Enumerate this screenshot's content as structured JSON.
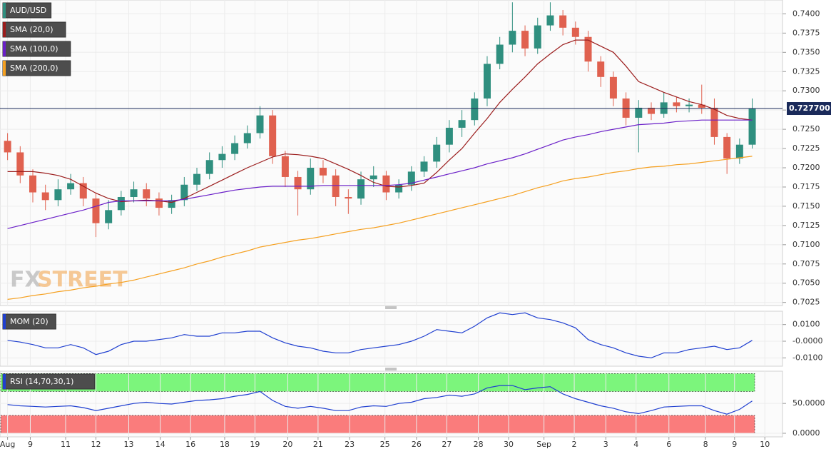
{
  "chart_data": [
    {
      "type": "candlestick",
      "watermark": [
        "FX",
        "STREET"
      ],
      "xlim": [
        -0.6,
        61.4
      ],
      "ylim": [
        0.7021,
        0.7418
      ],
      "yticks": [
        0.7025,
        {
          "value": 0.705,
          "label": "0.7050"
        },
        0.7075,
        {
          "value": 0.71,
          "label": "0.7100"
        },
        0.7125,
        {
          "value": 0.715,
          "label": "0.7150"
        },
        0.7175,
        {
          "value": 0.72,
          "label": "0.7200"
        },
        0.7225,
        {
          "value": 0.725,
          "label": "0.7250"
        },
        0.7275,
        {
          "value": 0.73,
          "label": "0.7300"
        },
        0.7325,
        {
          "value": 0.735,
          "label": "0.7350"
        },
        0.7375,
        {
          "value": 0.74,
          "label": "0.7400"
        }
      ],
      "grid": true,
      "last_price": {
        "value": 0.7277,
        "label": "0.727700",
        "color": "#1a2a5a"
      },
      "series": [
        {
          "name": "AUD/USD",
          "type": "candlestick",
          "color": "#2f8f7f",
          "color_down": "#e0614f",
          "open": [
            0.7235,
            0.722,
            0.719,
            0.7168,
            0.7158,
            0.7172,
            0.718,
            0.716,
            0.7128,
            0.7145,
            0.7162,
            0.7172,
            0.716,
            0.7148,
            0.7158,
            0.7178,
            0.7192,
            0.721,
            0.7218,
            0.7232,
            0.7245,
            0.7268,
            0.7215,
            0.7188,
            0.7172,
            0.72,
            0.719,
            0.7162,
            0.716,
            0.7185,
            0.719,
            0.7168,
            0.7178,
            0.7195,
            0.7208,
            0.723,
            0.7252,
            0.7262,
            0.729,
            0.7335,
            0.736,
            0.7378,
            0.7355,
            0.7385,
            0.7398,
            0.7382,
            0.737,
            0.7338,
            0.7318,
            0.729,
            0.7265,
            0.7278,
            0.727,
            0.7285,
            0.728,
            0.7282,
            0.7278,
            0.724,
            0.7212,
            0.723
          ],
          "high": [
            0.7245,
            0.7228,
            0.7198,
            0.7178,
            0.7185,
            0.7192,
            0.7188,
            0.7168,
            0.7158,
            0.717,
            0.7182,
            0.718,
            0.7168,
            0.7165,
            0.7188,
            0.72,
            0.722,
            0.7228,
            0.7242,
            0.7255,
            0.728,
            0.7275,
            0.7222,
            0.7196,
            0.7212,
            0.721,
            0.7198,
            0.7172,
            0.7195,
            0.7202,
            0.7196,
            0.7185,
            0.7202,
            0.7215,
            0.724,
            0.7262,
            0.7275,
            0.7298,
            0.7345,
            0.737,
            0.7415,
            0.7385,
            0.7395,
            0.7415,
            0.7405,
            0.739,
            0.7378,
            0.7345,
            0.7325,
            0.7298,
            0.7288,
            0.7285,
            0.7298,
            0.7292,
            0.729,
            0.7308,
            0.729,
            0.7245,
            0.7238,
            0.729
          ],
          "low": [
            0.721,
            0.718,
            0.7155,
            0.7145,
            0.715,
            0.7165,
            0.715,
            0.711,
            0.712,
            0.7138,
            0.7155,
            0.715,
            0.7138,
            0.714,
            0.715,
            0.717,
            0.7185,
            0.72,
            0.721,
            0.7225,
            0.7238,
            0.7205,
            0.7175,
            0.7138,
            0.7165,
            0.718,
            0.715,
            0.714,
            0.7152,
            0.7175,
            0.7158,
            0.716,
            0.717,
            0.7188,
            0.72,
            0.722,
            0.724,
            0.7255,
            0.728,
            0.7328,
            0.735,
            0.7345,
            0.7348,
            0.7378,
            0.7372,
            0.736,
            0.7325,
            0.7305,
            0.728,
            0.7255,
            0.722,
            0.7262,
            0.7265,
            0.7272,
            0.7272,
            0.727,
            0.723,
            0.7192,
            0.7205,
            0.7225
          ],
          "close": [
            0.722,
            0.719,
            0.7168,
            0.7158,
            0.7172,
            0.718,
            0.716,
            0.7128,
            0.7145,
            0.7162,
            0.7172,
            0.716,
            0.7148,
            0.7158,
            0.7178,
            0.7192,
            0.721,
            0.7218,
            0.7232,
            0.7245,
            0.7268,
            0.7215,
            0.7188,
            0.7172,
            0.72,
            0.719,
            0.7162,
            0.716,
            0.7185,
            0.719,
            0.7168,
            0.7178,
            0.7195,
            0.7208,
            0.723,
            0.7252,
            0.7262,
            0.729,
            0.7335,
            0.736,
            0.7378,
            0.7355,
            0.7385,
            0.7398,
            0.7382,
            0.737,
            0.7338,
            0.7318,
            0.729,
            0.7265,
            0.7278,
            0.727,
            0.7285,
            0.728,
            0.7282,
            0.7278,
            0.724,
            0.7212,
            0.723,
            0.7277
          ]
        },
        {
          "name": "SMA (20,0)",
          "type": "line",
          "color": "#9b1c1c",
          "values": [
            0.7195,
            0.7195,
            0.7195,
            0.7193,
            0.719,
            0.7185,
            0.7176,
            0.7167,
            0.716,
            0.7156,
            0.7157,
            0.7158,
            0.7157,
            0.7155,
            0.716,
            0.7168,
            0.7176,
            0.7184,
            0.7192,
            0.72,
            0.7207,
            0.7214,
            0.7218,
            0.7217,
            0.7215,
            0.7212,
            0.7205,
            0.7198,
            0.719,
            0.7181,
            0.7176,
            0.7175,
            0.7177,
            0.718,
            0.7194,
            0.721,
            0.7225,
            0.7245,
            0.7264,
            0.7285,
            0.7302,
            0.7318,
            0.7335,
            0.7348,
            0.736,
            0.7366,
            0.7366,
            0.7358,
            0.735,
            0.7332,
            0.7312,
            0.7305,
            0.7298,
            0.7292,
            0.7286,
            0.7282,
            0.7276,
            0.7268,
            0.7264,
            0.7262
          ]
        },
        {
          "name": "SMA (100,0)",
          "type": "line",
          "color": "#6a1fc8",
          "values": [
            0.7121,
            0.7125,
            0.7129,
            0.7133,
            0.7137,
            0.7141,
            0.7145,
            0.715,
            0.7155,
            0.7157,
            0.7157,
            0.7157,
            0.7157,
            0.7157,
            0.7159,
            0.7162,
            0.7165,
            0.7168,
            0.7171,
            0.7173,
            0.7175,
            0.7176,
            0.7176,
            0.7176,
            0.7176,
            0.7177,
            0.7177,
            0.7177,
            0.7177,
            0.7177,
            0.7177,
            0.7178,
            0.718,
            0.7184,
            0.7188,
            0.7192,
            0.7196,
            0.72,
            0.7205,
            0.7209,
            0.7213,
            0.7218,
            0.7224,
            0.723,
            0.7236,
            0.724,
            0.7243,
            0.7247,
            0.725,
            0.7253,
            0.7256,
            0.7257,
            0.7258,
            0.726,
            0.7261,
            0.7262,
            0.7262,
            0.7262,
            0.7262,
            0.7262
          ]
        },
        {
          "name": "SMA (200,0)",
          "type": "line",
          "color": "#f5a020",
          "values": [
            0.7029,
            0.7031,
            0.7034,
            0.7036,
            0.7039,
            0.7041,
            0.7044,
            0.7046,
            0.7049,
            0.7051,
            0.7054,
            0.7058,
            0.7062,
            0.7066,
            0.707,
            0.7075,
            0.7079,
            0.7084,
            0.7088,
            0.7092,
            0.7097,
            0.71,
            0.7103,
            0.7106,
            0.7108,
            0.7111,
            0.7114,
            0.7117,
            0.712,
            0.7122,
            0.7125,
            0.7128,
            0.7132,
            0.7136,
            0.714,
            0.7144,
            0.7148,
            0.7152,
            0.7156,
            0.716,
            0.7164,
            0.7169,
            0.7174,
            0.7178,
            0.7183,
            0.7186,
            0.7188,
            0.7191,
            0.7194,
            0.7196,
            0.7199,
            0.7201,
            0.7202,
            0.7204,
            0.7205,
            0.7207,
            0.7209,
            0.7211,
            0.7213,
            0.7215
          ]
        }
      ]
    },
    {
      "type": "line",
      "xlim": [
        -0.6,
        61.4
      ],
      "ylim": [
        -0.015,
        0.018
      ],
      "yticks": [
        {
          "value": 0.01,
          "label": "0.0100"
        },
        {
          "value": 0,
          "label": "-0.0000"
        },
        {
          "value": -0.01,
          "label": "-0.0100"
        }
      ],
      "grid": true,
      "series": [
        {
          "name": "MOM (20)",
          "type": "line",
          "color": "#1f3fd0",
          "values": [
            0.0005,
            -0.0005,
            -0.002,
            -0.004,
            -0.004,
            -0.002,
            -0.004,
            -0.008,
            -0.006,
            -0.002,
            0,
            0,
            0.001,
            0.002,
            0.004,
            0.003,
            0.003,
            0.005,
            0.005,
            0.006,
            0.006,
            0.002,
            -0.001,
            -0.003,
            -0.004,
            -0.006,
            -0.007,
            -0.007,
            -0.005,
            -0.004,
            -0.003,
            -0.002,
            0,
            0.003,
            0.007,
            0.006,
            0.005,
            0.009,
            0.014,
            0.017,
            0.016,
            0.017,
            0.014,
            0.013,
            0.011,
            0.008,
            0.001,
            -0.002,
            -0.004,
            -0.007,
            -0.009,
            -0.01,
            -0.007,
            -0.007,
            -0.005,
            -0.004,
            -0.003,
            -0.005,
            -0.004,
            0.0005
          ]
        }
      ]
    },
    {
      "type": "line",
      "xlim": [
        -0.6,
        61.4
      ],
      "ylim": [
        -6,
        104
      ],
      "yticks": [
        {
          "value": 50,
          "label": "50.0000"
        },
        {
          "value": 0,
          "label": "0.0000"
        }
      ],
      "bands": [
        {
          "range": [
            70,
            100
          ],
          "color": "#7cf57c"
        },
        {
          "range": [
            0,
            30
          ],
          "color": "#fa7c7c"
        }
      ],
      "xticks": [
        {
          "value": 0,
          "label": "Aug"
        },
        {
          "value": 1.8,
          "label": "9"
        },
        {
          "value": 4.6,
          "label": "11"
        },
        {
          "value": 7.0,
          "label": "12"
        },
        {
          "value": 9.6,
          "label": "13"
        },
        {
          "value": 12.1,
          "label": "14"
        },
        {
          "value": 14.5,
          "label": "16"
        },
        {
          "value": 17.2,
          "label": "18"
        },
        {
          "value": 19.6,
          "label": "19"
        },
        {
          "value": 22.2,
          "label": "20"
        },
        {
          "value": 24.6,
          "label": "21"
        },
        {
          "value": 27.1,
          "label": "23"
        },
        {
          "value": 29.9,
          "label": "25"
        },
        {
          "value": 32.4,
          "label": "26"
        },
        {
          "value": 34.8,
          "label": "27"
        },
        {
          "value": 37.3,
          "label": "28"
        },
        {
          "value": 39.7,
          "label": "30"
        },
        {
          "value": 42.5,
          "label": "Sep"
        },
        {
          "value": 44.9,
          "label": "2"
        },
        {
          "value": 47.4,
          "label": "3"
        },
        {
          "value": 49.8,
          "label": "4"
        },
        {
          "value": 52.4,
          "label": "6"
        },
        {
          "value": 55.3,
          "label": "8"
        },
        {
          "value": 57.6,
          "label": "9"
        },
        {
          "value": 60.0,
          "label": "10"
        }
      ],
      "grid": true,
      "series": [
        {
          "name": "RSI (14,70,30,1)",
          "type": "line",
          "color": "#1f3fd0",
          "values": [
            48,
            46,
            45,
            44,
            45,
            46,
            43,
            38,
            42,
            46,
            50,
            52,
            50,
            49,
            52,
            55,
            56,
            58,
            62,
            65,
            70,
            55,
            45,
            42,
            45,
            42,
            38,
            38,
            44,
            46,
            45,
            50,
            52,
            58,
            60,
            64,
            62,
            66,
            76,
            80,
            80,
            73,
            76,
            78,
            66,
            58,
            52,
            46,
            42,
            36,
            33,
            38,
            44,
            45,
            46,
            46,
            38,
            32,
            40,
            54
          ]
        }
      ]
    }
  ]
}
